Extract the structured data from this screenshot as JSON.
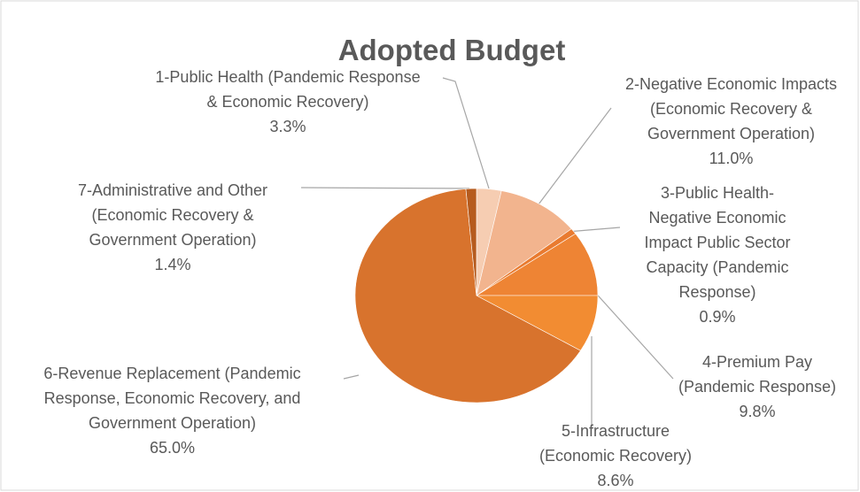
{
  "chart_data": {
    "type": "pie",
    "title": "Adopted Budget",
    "categories": [
      "1-Public Health (Pandemic Response & Economic Recovery)",
      "2-Negative Economic Impacts (Economic Recovery & Government Operation)",
      "3-Public Health-Negative Economic Impact Public Sector Capacity (Pandemic Response)",
      "4-Premium Pay (Pandemic Response)",
      "5-Infrastructure (Economic Recovery)",
      "6-Revenue Replacement (Pandemic Response, Economic Recovery, and Government Operation)",
      "7-Administrative and Other (Economic Recovery & Government Operation)"
    ],
    "values": [
      3.3,
      11.0,
      0.9,
      9.8,
      8.6,
      65.0,
      1.4
    ],
    "value_labels": [
      "3.3%",
      "11.0%",
      "0.9%",
      "9.8%",
      "8.6%",
      "65.0%",
      "1.4%"
    ],
    "colors": [
      "#f6cdb2",
      "#f2b48e",
      "#e97b30",
      "#ee8434",
      "#f28c32",
      "#d8732d",
      "#b65b1e"
    ]
  }
}
